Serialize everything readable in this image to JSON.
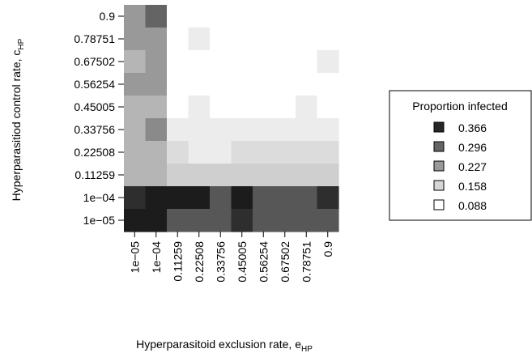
{
  "chart_data": {
    "type": "heatmap",
    "xlabel_main": "Hyperparasitoid exclusion rate, e",
    "xlabel_sub": "HP",
    "ylabel_main": "Hyperparasitiod control rate, c",
    "ylabel_sub": "HP",
    "x_categories": [
      "1e−05",
      "1e−04",
      "0.11259",
      "0.22508",
      "0.33756",
      "0.45005",
      "0.56254",
      "0.67502",
      "0.78751",
      "0.9"
    ],
    "y_categories": [
      "1e−05",
      "1e−04",
      "0.11259",
      "0.22508",
      "0.33756",
      "0.45005",
      "0.56254",
      "0.67502",
      "0.78751",
      "0.9"
    ],
    "legend": {
      "title": "Proportion infected",
      "position": "right",
      "entries": [
        {
          "label": "0.366",
          "color": "#262626"
        },
        {
          "label": "0.296",
          "color": "#646464"
        },
        {
          "label": "0.227",
          "color": "#999999"
        },
        {
          "label": "0.158",
          "color": "#d6d6d6"
        },
        {
          "label": "0.088",
          "color": "#ffffff"
        }
      ]
    },
    "cell_colors": {
      "0.9": [
        "#999999",
        "#646464",
        "#ffffff",
        "#ffffff",
        "#ffffff",
        "#ffffff",
        "#ffffff",
        "#ffffff",
        "#ffffff",
        "#ffffff"
      ],
      "0.78751": [
        "#999999",
        "#999999",
        "#ffffff",
        "#ececec",
        "#ffffff",
        "#ffffff",
        "#ffffff",
        "#ffffff",
        "#ffffff",
        "#ffffff"
      ],
      "0.67502": [
        "#b5b5b5",
        "#999999",
        "#ffffff",
        "#ffffff",
        "#ffffff",
        "#ffffff",
        "#ffffff",
        "#ffffff",
        "#ffffff",
        "#ececec"
      ],
      "0.56254": [
        "#999999",
        "#999999",
        "#ffffff",
        "#ffffff",
        "#ffffff",
        "#ffffff",
        "#ffffff",
        "#ffffff",
        "#ffffff",
        "#ffffff"
      ],
      "0.45005": [
        "#b5b5b5",
        "#b5b5b5",
        "#ffffff",
        "#ececec",
        "#ffffff",
        "#ffffff",
        "#ffffff",
        "#ffffff",
        "#ececec",
        "#ffffff"
      ],
      "0.33756": [
        "#b5b5b5",
        "#8a8a8a",
        "#ececec",
        "#ececec",
        "#ececec",
        "#ececec",
        "#ececec",
        "#ececec",
        "#ececec",
        "#ececec"
      ],
      "0.22508": [
        "#b5b5b5",
        "#b5b5b5",
        "#dcdcdc",
        "#ececec",
        "#ececec",
        "#dcdcdc",
        "#dcdcdc",
        "#dcdcdc",
        "#dcdcdc",
        "#dcdcdc"
      ],
      "0.11259": [
        "#b5b5b5",
        "#b5b5b5",
        "#cfcfcf",
        "#cfcfcf",
        "#cfcfcf",
        "#cfcfcf",
        "#cfcfcf",
        "#cfcfcf",
        "#cfcfcf",
        "#cfcfcf"
      ],
      "1e−04": [
        "#2e2e2e",
        "#1c1c1c",
        "#1c1c1c",
        "#1c1c1c",
        "#575757",
        "#1c1c1c",
        "#575757",
        "#575757",
        "#575757",
        "#2e2e2e"
      ],
      "1e−05": [
        "#1c1c1c",
        "#1c1c1c",
        "#575757",
        "#575757",
        "#575757",
        "#2e2e2e",
        "#575757",
        "#575757",
        "#575757",
        "#575757"
      ]
    }
  }
}
